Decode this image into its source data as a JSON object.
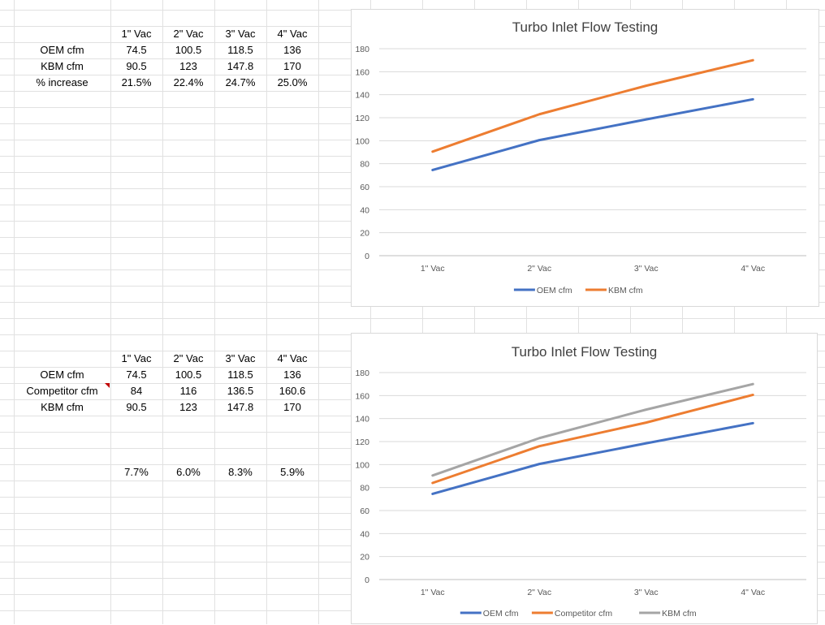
{
  "table_top": {
    "headers": [
      "1\" Vac",
      "2\" Vac",
      "3\" Vac",
      "4\" Vac"
    ],
    "rows": [
      {
        "label": "OEM cfm",
        "values": [
          "74.5",
          "100.5",
          "118.5",
          "136"
        ]
      },
      {
        "label": "KBM cfm",
        "values": [
          "90.5",
          "123",
          "147.8",
          "170"
        ]
      },
      {
        "label": "% increase",
        "values": [
          "21.5%",
          "22.4%",
          "24.7%",
          "25.0%"
        ]
      }
    ]
  },
  "table_bottom": {
    "headers": [
      "1\" Vac",
      "2\" Vac",
      "3\" Vac",
      "4\" Vac"
    ],
    "rows": [
      {
        "label": "OEM cfm",
        "values": [
          "74.5",
          "100.5",
          "118.5",
          "136"
        ]
      },
      {
        "label": "Competitor cfm",
        "values": [
          "84",
          "116",
          "136.5",
          "160.6"
        ]
      },
      {
        "label": "KBM cfm",
        "values": [
          "90.5",
          "123",
          "147.8",
          "170"
        ]
      }
    ],
    "percents": [
      "7.7%",
      "6.0%",
      "8.3%",
      "5.9%"
    ]
  },
  "chart_data": [
    {
      "type": "line",
      "title": "Turbo Inlet Flow Testing",
      "categories": [
        "1\" Vac",
        "2\" Vac",
        "3\" Vac",
        "4\" Vac"
      ],
      "series": [
        {
          "name": "OEM cfm",
          "values": [
            74.5,
            100.5,
            118.5,
            136
          ],
          "color": "#4472c4"
        },
        {
          "name": "KBM cfm",
          "values": [
            90.5,
            123,
            147.8,
            170
          ],
          "color": "#ed7d31"
        }
      ],
      "yticks": [
        0,
        20,
        40,
        60,
        80,
        100,
        120,
        140,
        160,
        180
      ],
      "ylim": [
        0,
        180
      ],
      "grid": true,
      "legend": "bottom"
    },
    {
      "type": "line",
      "title": "Turbo Inlet Flow Testing",
      "categories": [
        "1\" Vac",
        "2\" Vac",
        "3\" Vac",
        "4\" Vac"
      ],
      "series": [
        {
          "name": "OEM cfm",
          "values": [
            74.5,
            100.5,
            118.5,
            136
          ],
          "color": "#4472c4"
        },
        {
          "name": "Competitor cfm",
          "values": [
            84,
            116,
            136.5,
            160.6
          ],
          "color": "#ed7d31"
        },
        {
          "name": "KBM cfm",
          "values": [
            90.5,
            123,
            147.8,
            170
          ],
          "color": "#a5a5a5"
        }
      ],
      "yticks": [
        0,
        20,
        40,
        60,
        80,
        100,
        120,
        140,
        160,
        180
      ],
      "ylim": [
        0,
        180
      ],
      "grid": true,
      "legend": "bottom"
    }
  ]
}
